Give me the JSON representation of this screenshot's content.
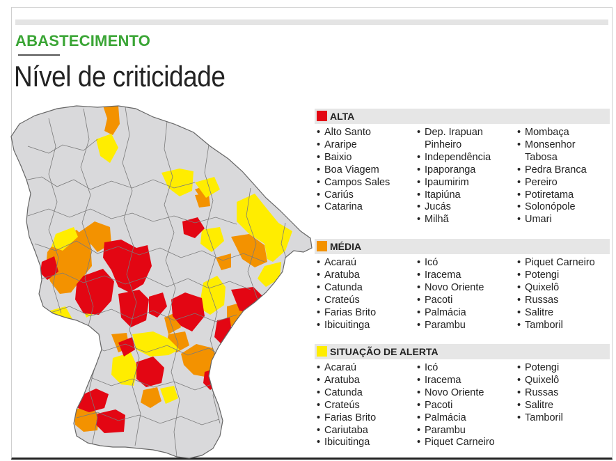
{
  "kicker": "ABASTECIMENTO",
  "title": "Nível de criticidade",
  "colors": {
    "alta": "#e30613",
    "media": "#f39200",
    "alerta": "#ffed00",
    "base": "#d9d9db",
    "border": "#666666",
    "kicker": "#3aa535"
  },
  "sections": [
    {
      "id": "alta",
      "label": "ALTA",
      "color": "#e30613",
      "columns": [
        [
          "Alto Santo",
          "Araripe",
          "Baixio",
          "Boa Viagem",
          "Campos Sales",
          "Cariús",
          "Catarina"
        ],
        [
          "Dep. Irapuan\nPinheiro",
          "Independência",
          "Ipaporanga",
          "Ipaumirim",
          "Itapiúna",
          "Jucás",
          "Milhã"
        ],
        [
          "Mombaça",
          "Monsenhor\nTabosa",
          "Pedra Branca",
          "Pereiro",
          "Potiretama",
          "Solonópole",
          "Umari"
        ]
      ]
    },
    {
      "id": "media",
      "label": "MÉDIA",
      "color": "#f39200",
      "columns": [
        [
          "Acaraú",
          "Aratuba",
          "Catunda",
          "Crateús",
          "Farias Brito",
          "Ibicuitinga"
        ],
        [
          "Icó",
          "Iracema",
          "Novo Oriente",
          "Pacoti",
          "Palmácia",
          "Parambu"
        ],
        [
          "Piquet Carneiro",
          "Potengi",
          "Quixelô",
          "Russas",
          "Salitre",
          "Tamboril"
        ]
      ]
    },
    {
      "id": "alerta",
      "label": "SITUAÇÃO DE ALERTA",
      "color": "#ffed00",
      "columns": [
        [
          "Acaraú",
          "Aratuba",
          "Catunda",
          "Crateús",
          "Farias Brito",
          "Cariutaba",
          "Ibicuitinga"
        ],
        [
          "Icó",
          "Iracema",
          "Novo Oriente",
          "Pacoti",
          "Palmácia",
          "Parambu",
          "Piquet Carneiro"
        ],
        [
          "Potengi",
          "Quixelô",
          "Russas",
          "Salitre",
          "Tamboril"
        ]
      ]
    }
  ]
}
